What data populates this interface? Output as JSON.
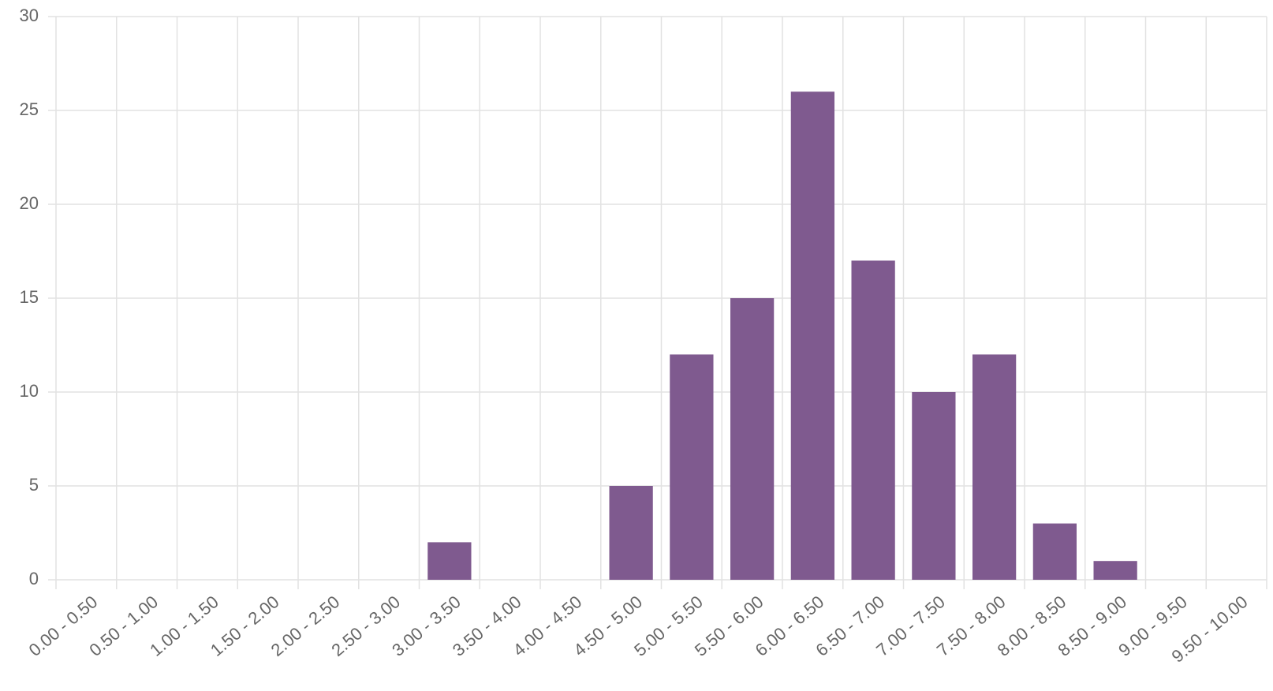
{
  "chart_data": {
    "type": "bar",
    "categories": [
      "0.00 - 0.50",
      "0.50 - 1.00",
      "1.00 - 1.50",
      "1.50 - 2.00",
      "2.00 - 2.50",
      "2.50 - 3.00",
      "3.00 - 3.50",
      "3.50 - 4.00",
      "4.00 - 4.50",
      "4.50 - 5.00",
      "5.00 - 5.50",
      "5.50 - 6.00",
      "6.00 - 6.50",
      "6.50 - 7.00",
      "7.00 - 7.50",
      "7.50 - 8.00",
      "8.00 - 8.50",
      "8.50 - 9.00",
      "9.00 - 9.50",
      "9.50 - 10.00"
    ],
    "values": [
      0,
      0,
      0,
      0,
      0,
      0,
      2,
      0,
      0,
      5,
      12,
      15,
      26,
      17,
      10,
      12,
      3,
      1,
      0,
      0
    ],
    "color": "#7f5a8f",
    "ylim": [
      0,
      30
    ],
    "yticks": [
      0,
      5,
      10,
      15,
      20,
      25,
      30
    ],
    "grid": true
  }
}
